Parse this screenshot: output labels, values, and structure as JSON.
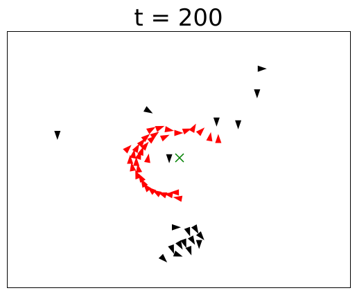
{
  "chart_data": {
    "type": "scatter",
    "title": "t = 200",
    "xlabel": "",
    "ylabel": "",
    "xlim": [
      0,
      100
    ],
    "ylim": [
      0,
      100
    ],
    "grid": false,
    "axis_ticks": false,
    "colors": {
      "red_group": "#ff0000",
      "black_group": "#000000",
      "target": "#008000",
      "frame": "#000000",
      "background": "#ffffff"
    },
    "target": {
      "marker": "x",
      "x": 50.2,
      "y": 50.7
    },
    "series": [
      {
        "color": "#ff0000",
        "marker": "triangle",
        "points": [
          {
            "x": 42.0,
            "y": 61.8,
            "angle": -30
          },
          {
            "x": 44.5,
            "y": 62.5,
            "angle": -20
          },
          {
            "x": 47.2,
            "y": 61.6,
            "angle": 10
          },
          {
            "x": 49.9,
            "y": 60.4,
            "angle": 0
          },
          {
            "x": 52.4,
            "y": 61.5,
            "angle": -20
          },
          {
            "x": 54.3,
            "y": 62.4,
            "angle": -60
          },
          {
            "x": 56.5,
            "y": 61.2,
            "angle": -45
          },
          {
            "x": 59.1,
            "y": 58.9,
            "angle": -80
          },
          {
            "x": 61.5,
            "y": 58.1,
            "angle": -90
          },
          {
            "x": 40.5,
            "y": 58.8,
            "angle": -40
          },
          {
            "x": 42.3,
            "y": 58.2,
            "angle": -40
          },
          {
            "x": 39.3,
            "y": 56.8,
            "angle": -50
          },
          {
            "x": 37.8,
            "y": 54.6,
            "angle": -60
          },
          {
            "x": 35.2,
            "y": 54.4,
            "angle": -45
          },
          {
            "x": 39.2,
            "y": 53.4,
            "angle": -70
          },
          {
            "x": 36.8,
            "y": 52.2,
            "angle": -80
          },
          {
            "x": 38.5,
            "y": 51.8,
            "angle": -70
          },
          {
            "x": 35.8,
            "y": 50.0,
            "angle": -90
          },
          {
            "x": 37.6,
            "y": 49.2,
            "angle": -90
          },
          {
            "x": 36.4,
            "y": 47.2,
            "angle": -100
          },
          {
            "x": 38.2,
            "y": 46.6,
            "angle": -100
          },
          {
            "x": 37.8,
            "y": 44.2,
            "angle": -110
          },
          {
            "x": 38.9,
            "y": 43.0,
            "angle": -120
          },
          {
            "x": 39.6,
            "y": 41.0,
            "angle": -120
          },
          {
            "x": 40.5,
            "y": 39.3,
            "angle": -130
          },
          {
            "x": 41.9,
            "y": 38.2,
            "angle": -140
          },
          {
            "x": 43.5,
            "y": 37.2,
            "angle": -150
          },
          {
            "x": 45.2,
            "y": 36.6,
            "angle": -160
          },
          {
            "x": 47.0,
            "y": 36.4,
            "angle": -170
          },
          {
            "x": 48.8,
            "y": 37.2,
            "angle": -180
          },
          {
            "x": 49.7,
            "y": 35.0,
            "angle": -170
          },
          {
            "x": 40.3,
            "y": 55.5,
            "angle": -50
          },
          {
            "x": 41.0,
            "y": 50.5,
            "angle": -80
          },
          {
            "x": 43.1,
            "y": 59.8,
            "angle": -35
          },
          {
            "x": 46.0,
            "y": 58.9,
            "angle": -25
          }
        ]
      },
      {
        "color": "#000000",
        "marker": "triangle",
        "points": [
          {
            "x": 74.2,
            "y": 85.5,
            "angle": 0
          },
          {
            "x": 72.8,
            "y": 75.8,
            "angle": 90
          },
          {
            "x": 41.2,
            "y": 69.0,
            "angle": 30
          },
          {
            "x": 14.6,
            "y": 59.6,
            "angle": 90
          },
          {
            "x": 61.0,
            "y": 64.8,
            "angle": 90
          },
          {
            "x": 67.3,
            "y": 63.7,
            "angle": 90
          },
          {
            "x": 47.2,
            "y": 50.5,
            "angle": 90
          },
          {
            "x": 49.2,
            "y": 23.6,
            "angle": 0
          },
          {
            "x": 52.8,
            "y": 21.8,
            "angle": 70
          },
          {
            "x": 55.0,
            "y": 22.7,
            "angle": 60
          },
          {
            "x": 56.5,
            "y": 20.0,
            "angle": 50
          },
          {
            "x": 54.0,
            "y": 18.4,
            "angle": 60
          },
          {
            "x": 51.7,
            "y": 17.3,
            "angle": 70
          },
          {
            "x": 50.4,
            "y": 16.5,
            "angle": 60
          },
          {
            "x": 48.1,
            "y": 15.0,
            "angle": 70
          },
          {
            "x": 55.9,
            "y": 17.0,
            "angle": 90
          },
          {
            "x": 49.8,
            "y": 12.8,
            "angle": 20
          },
          {
            "x": 45.6,
            "y": 11.2,
            "angle": 45
          },
          {
            "x": 53.2,
            "y": 14.4,
            "angle": 70
          }
        ]
      }
    ]
  }
}
